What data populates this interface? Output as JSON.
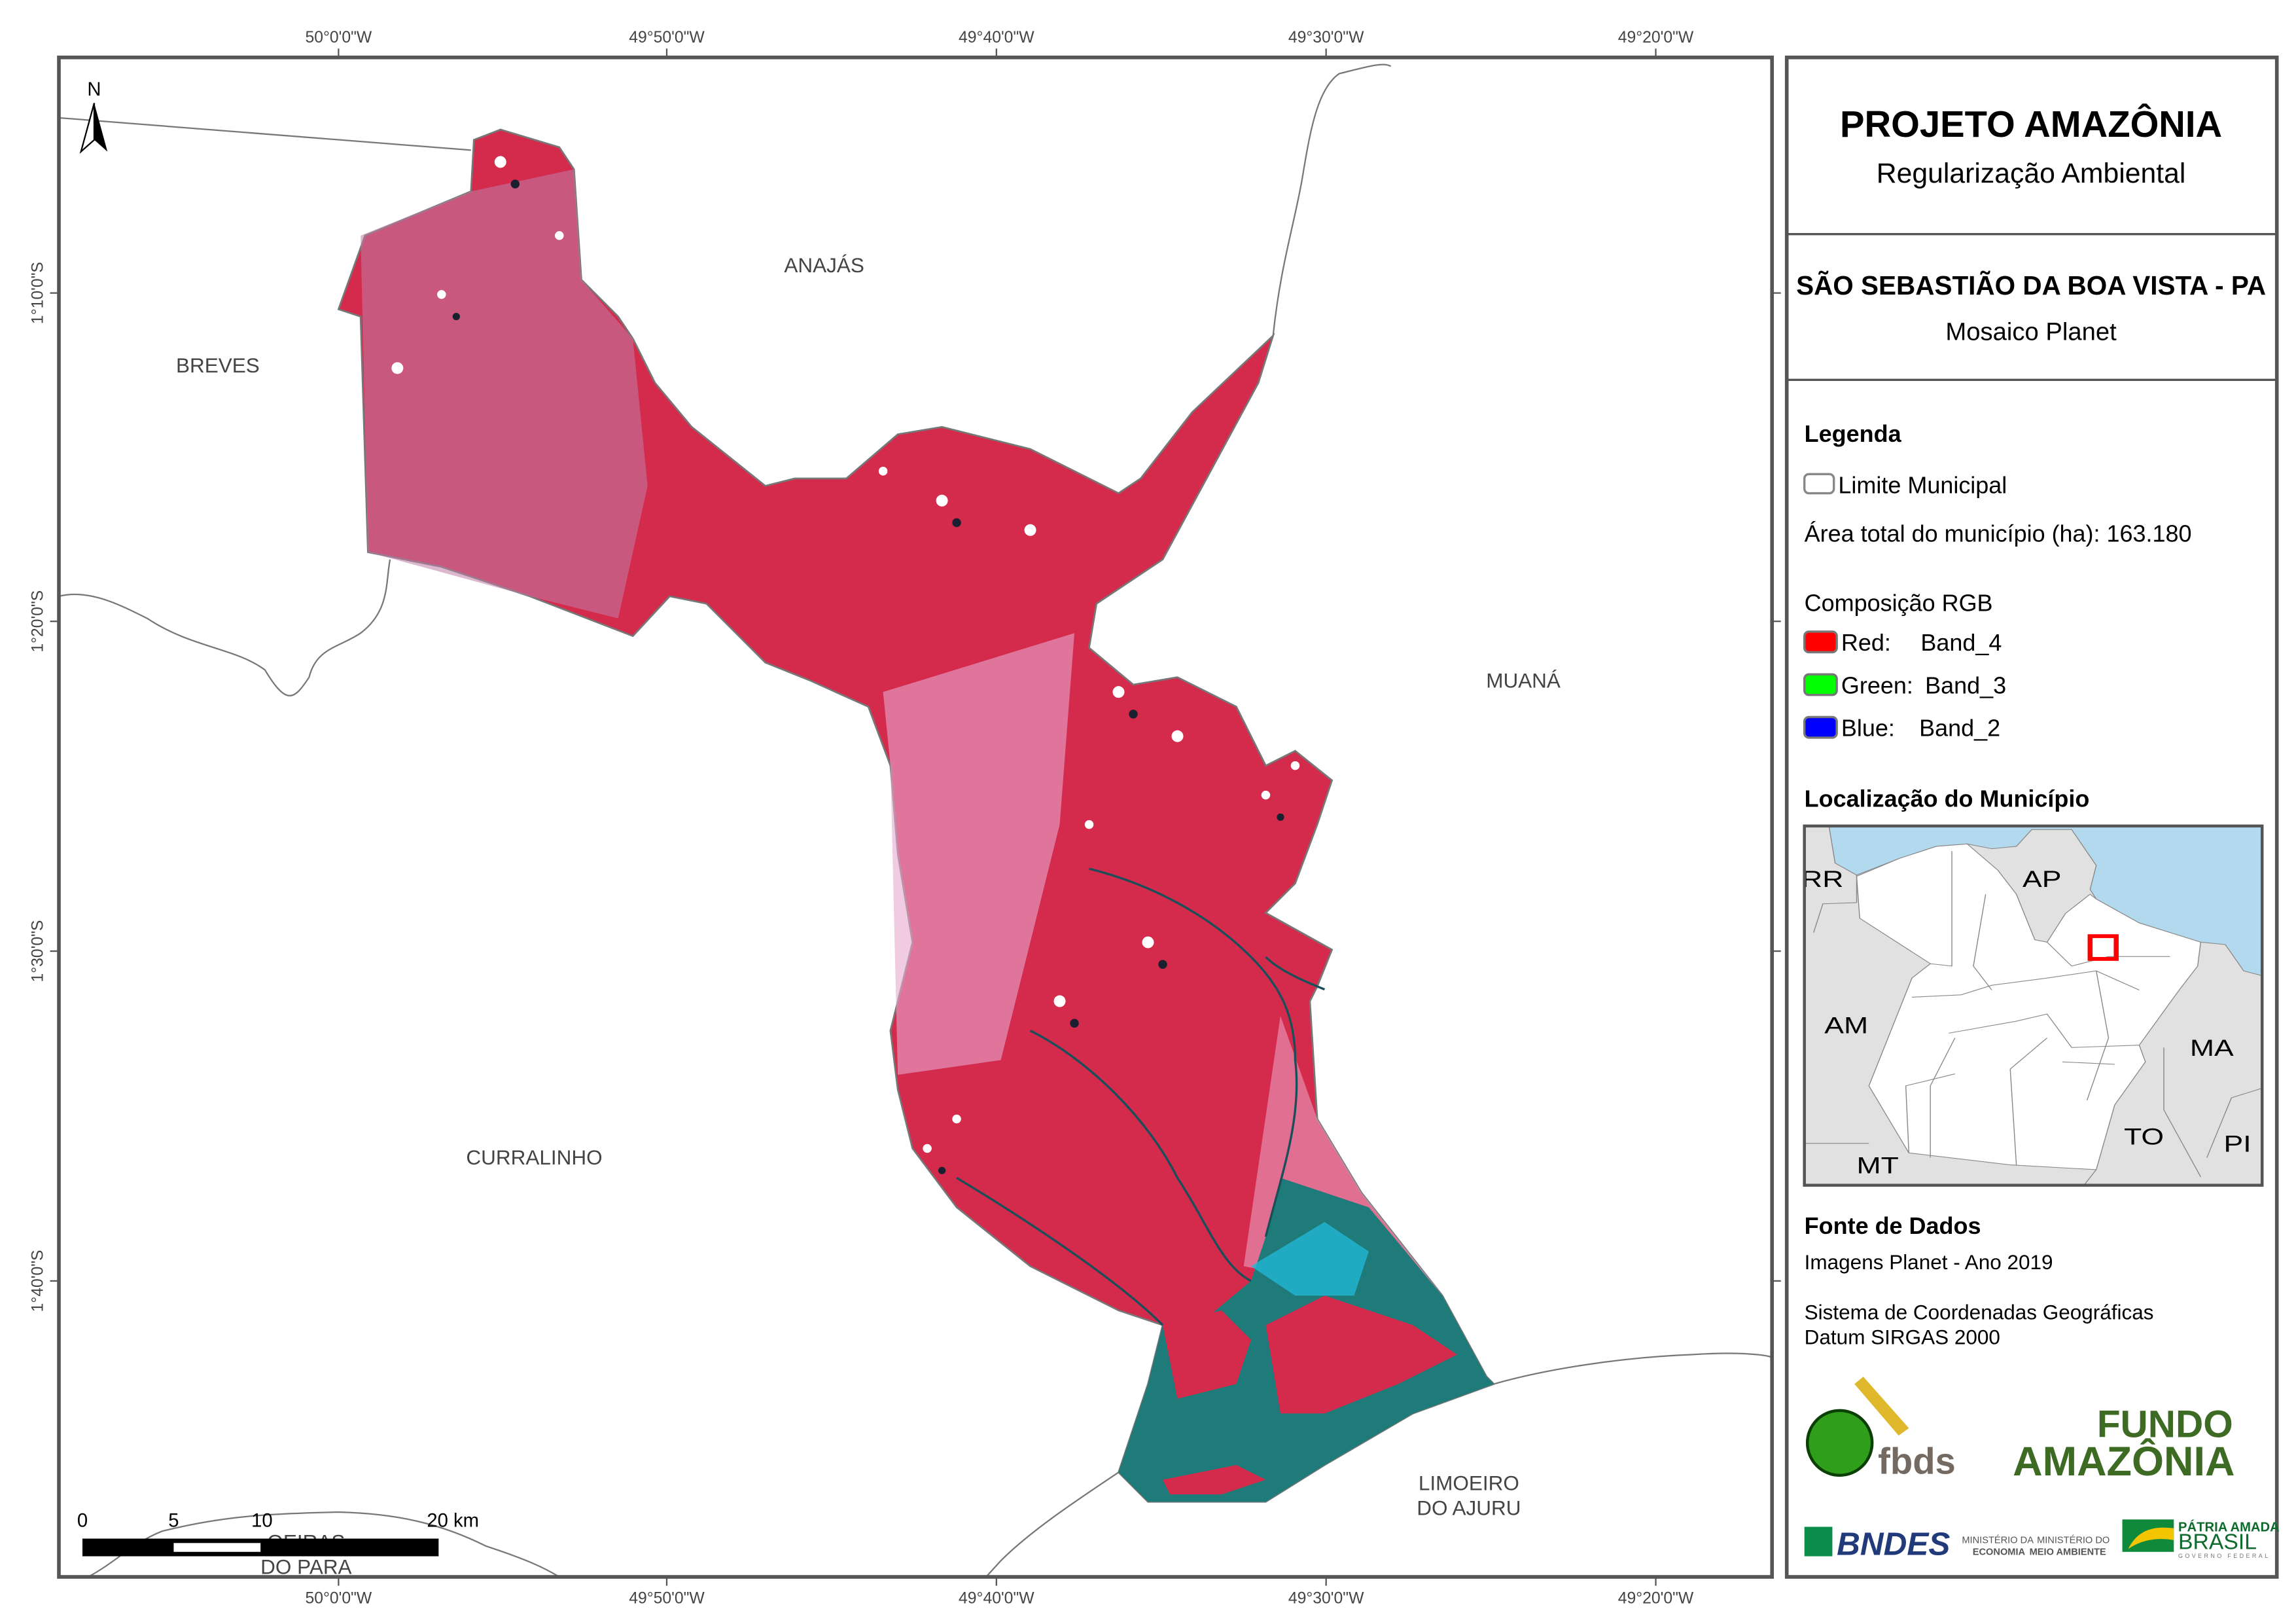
{
  "map": {
    "coords_top": [
      "50°0'0\"W",
      "49°50'0\"W",
      "49°40'0\"W",
      "49°30'0\"W",
      "49°20'0\"W"
    ],
    "coords_bottom": [
      "50°0'0\"W",
      "49°50'0\"W",
      "49°40'0\"W",
      "49°30'0\"W",
      "49°20'0\"W"
    ],
    "coords_left": [
      "1°10'0\"S",
      "1°20'0\"S",
      "1°30'0\"S",
      "1°40'0\"S"
    ],
    "north_label": "N",
    "municipalities": {
      "breves": "BREVES",
      "anajas": "ANAJÁS",
      "muana": "MUANÁ",
      "curralinho": "CURRALINHO",
      "limoeiro_1": "LIMOEIRO",
      "limoeiro_2": "DO AJURU",
      "oeiras_1": "OEIRAS",
      "oeiras_2": "DO PARA"
    },
    "scale_bar": {
      "labels": [
        "0",
        "5",
        "10",
        "20 km"
      ]
    },
    "colors": {
      "vegetation": "#d42a4c",
      "water": "#1f7b79",
      "boundary": "#777777"
    }
  },
  "panel": {
    "title": "PROJETO AMAZÔNIA",
    "subtitle": "Regularização Ambiental",
    "municipality": "SÃO SEBASTIÃO DA BOA VISTA - PA",
    "mosaic": "Mosaico Planet",
    "legend": {
      "heading": "Legenda",
      "limit_label": "Limite Municipal",
      "area_label": "Área total do município (ha): 163.180",
      "rgb_heading": "Composição RGB",
      "bands": [
        {
          "channel": "Red:",
          "band": "Band_4",
          "color": "#ff0000"
        },
        {
          "channel": "Green:",
          "band": "Band_3",
          "color": "#00ff00"
        },
        {
          "channel": "Blue:",
          "band": "Band_2",
          "color": "#0000ff"
        }
      ]
    },
    "location": {
      "heading": "Localização do Município",
      "states": [
        "RR",
        "AP",
        "AM",
        "MA",
        "TO",
        "PI",
        "MT"
      ]
    },
    "sources": {
      "heading": "Fonte de Dados",
      "imagery": "Imagens Planet - Ano 2019",
      "crs": "Sistema de Coordenadas Geográficas",
      "datum": "Datum SIRGAS 2000"
    },
    "logos": {
      "fbds": "fbds",
      "fundo_1": "FUNDO",
      "fundo_2": "AMAZÔNIA",
      "bndes": "BNDES",
      "min_eco_1": "MINISTÉRIO DA",
      "min_eco_2": "ECONOMIA",
      "min_amb_1": "MINISTÉRIO DO",
      "min_amb_2": "MEIO AMBIENTE",
      "patria": "PÁTRIA AMADA",
      "brasil": "BRASIL",
      "gov": "GOVERNO FEDERAL"
    }
  }
}
